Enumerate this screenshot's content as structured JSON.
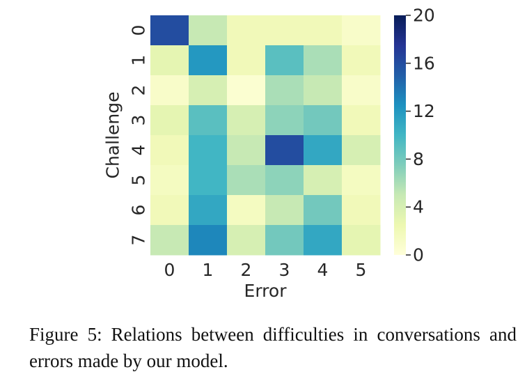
{
  "chart_data": {
    "type": "heatmap",
    "title": "",
    "xlabel": "Error",
    "ylabel": "Challenge",
    "x_categories": [
      "0",
      "1",
      "2",
      "3",
      "4",
      "5"
    ],
    "y_categories": [
      "0",
      "1",
      "2",
      "3",
      "4",
      "5",
      "6",
      "7"
    ],
    "values": [
      [
        16,
        5,
        2,
        2,
        2,
        1
      ],
      [
        3,
        12,
        2,
        9,
        6,
        2
      ],
      [
        1,
        4,
        0.5,
        6,
        5,
        1
      ],
      [
        3,
        9,
        4,
        7,
        8,
        2
      ],
      [
        2,
        10,
        5,
        16,
        11,
        4
      ],
      [
        1.5,
        10,
        6,
        7,
        4,
        1.5
      ],
      [
        2,
        11,
        1.5,
        5,
        8,
        2
      ],
      [
        5,
        13,
        4,
        8,
        11,
        3
      ]
    ],
    "colorbar": {
      "colormap": "YlGnBu",
      "range": [
        0,
        20
      ],
      "ticks": [
        "0",
        "4",
        "8",
        "12",
        "16",
        "20"
      ]
    },
    "grid": false
  },
  "caption": "Figure 5:  Relations between difficulties in conversations and errors made by our model."
}
